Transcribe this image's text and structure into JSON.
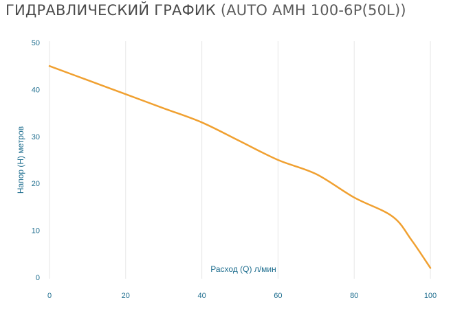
{
  "header": {
    "title_main": "ГИДРАВЛИЧЕСКИЙ ГРАФИК",
    "title_model": "(AUTO AMH 100-6P(50L))"
  },
  "colors": {
    "line": "#f0a030",
    "grid": "#e6e6e6",
    "tick_text": "#1f6e8f",
    "title_text": "#4a4a4a"
  },
  "chart_data": {
    "type": "line",
    "title": "ГИДРАВЛИЧЕСКИЙ ГРАФИК (AUTO AMH 100-6P(50L))",
    "xlabel": "Расход (Q) л/мин",
    "ylabel": "Напор (H) метров",
    "xlim": [
      0,
      100
    ],
    "ylim": [
      0,
      50
    ],
    "xticks": [
      0,
      20,
      40,
      60,
      80,
      100
    ],
    "yticks": [
      0,
      10,
      20,
      30,
      40,
      50
    ],
    "grid": "vertical",
    "series": [
      {
        "x": [
          0,
          10,
          20,
          30,
          40,
          50,
          60,
          70,
          80,
          90,
          95,
          100
        ],
        "y": [
          45,
          42,
          39,
          36,
          33,
          29,
          25,
          22,
          17,
          13,
          8,
          2
        ]
      }
    ]
  }
}
